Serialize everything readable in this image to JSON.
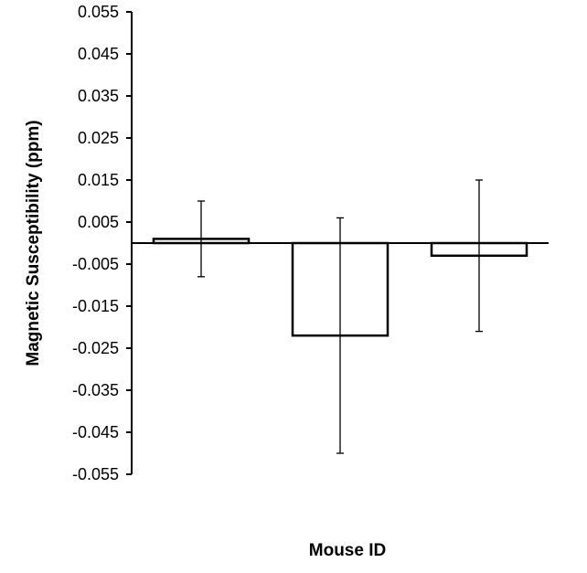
{
  "chart_data": {
    "type": "bar",
    "title": "",
    "xlabel": "Mouse ID",
    "ylabel": "Magnetic Susceptibility (ppm)",
    "ylim": [
      -0.055,
      0.055
    ],
    "yticks": [
      "0.055",
      "0.045",
      "0.035",
      "0.025",
      "0.015",
      "0.005",
      "-0.005",
      "-0.015",
      "-0.025",
      "-0.035",
      "-0.045",
      "-0.055"
    ],
    "ytick_values": [
      0.055,
      0.045,
      0.035,
      0.025,
      0.015,
      0.005,
      -0.005,
      -0.015,
      -0.025,
      -0.035,
      -0.045,
      -0.055
    ],
    "categories": [
      "",
      "",
      ""
    ],
    "values": [
      0.001,
      -0.022,
      -0.003
    ],
    "error_low": [
      -0.008,
      -0.05,
      -0.021
    ],
    "error_high": [
      0.01,
      0.006,
      0.015
    ],
    "bar_fill": "#ffffff",
    "bar_stroke": "#000000",
    "grid": false,
    "legend": "none"
  }
}
